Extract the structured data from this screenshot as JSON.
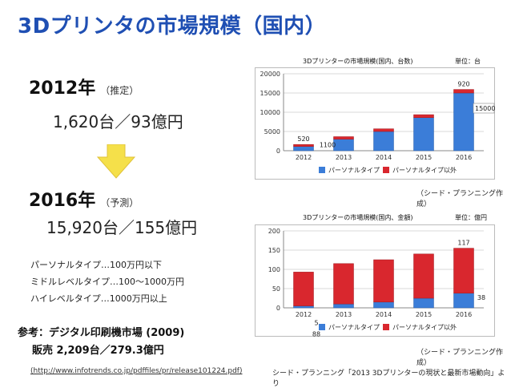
{
  "title": "3Dプリンタの市場規模（国内）",
  "left": {
    "y2012": {
      "year": "2012年",
      "note": "（推定）",
      "value": "1,620台／93億円"
    },
    "y2016": {
      "year": "2016年",
      "note": "（予測）",
      "value": "15,920台／155億円"
    },
    "types": [
      "パーソナルタイプ…100万円以下",
      "ミドルレベルタイプ…100〜1000万円",
      "ハイレベルタイプ…1000万円以上"
    ],
    "reference": {
      "line1": "参考：デジタル印刷機市場 (2009)",
      "line2": "販売 2,209台／279.3億円",
      "link": "(http://www.infotrends.co.jp/pdffiles/pr/release101224.pdf)"
    }
  },
  "source": "シード・プランニング「2013 3Dプリンターの現状と最新市場動向」より",
  "colors": {
    "title": "#1f4fb3",
    "personal": "#3b7dd8",
    "other": "#d9272e",
    "arrow": "#f5e04a"
  },
  "chart_data": [
    {
      "type": "bar",
      "stacked": true,
      "title": "3Dプリンターの市場規模(国内、台数)",
      "unit": "単位：台",
      "credit": "（シード・プランニング作成）",
      "categories": [
        "2012",
        "2013",
        "2014",
        "2015",
        "2016"
      ],
      "yticks": [
        "0",
        "5000",
        "10000",
        "15000",
        "20000"
      ],
      "ylim": [
        0,
        20000
      ],
      "series": [
        {
          "name": "パーソナルタイプ",
          "values": [
            1100,
            3000,
            5000,
            8600,
            15000
          ]
        },
        {
          "name": "パーソナルタイプ以外",
          "values": [
            520,
            650,
            700,
            770,
            920
          ]
        }
      ],
      "labels": [
        "520",
        "1100",
        "920",
        "15000"
      ]
    },
    {
      "type": "bar",
      "stacked": true,
      "title": "3Dプリンターの市場規模(国内、金額)",
      "unit": "単位：億円",
      "credit": "（シード・プランニング作成）",
      "categories": [
        "2012",
        "2013",
        "2014",
        "2015",
        "2016"
      ],
      "yticks": [
        "0",
        "50",
        "100",
        "150",
        "200"
      ],
      "ylim": [
        0,
        200
      ],
      "series": [
        {
          "name": "パーソナルタイプ",
          "values": [
            5,
            10,
            15,
            25,
            38
          ]
        },
        {
          "name": "パーソナルタイプ以外",
          "values": [
            88,
            105,
            110,
            115,
            117
          ]
        }
      ],
      "labels": [
        "88",
        "5",
        "117",
        "38"
      ]
    }
  ]
}
